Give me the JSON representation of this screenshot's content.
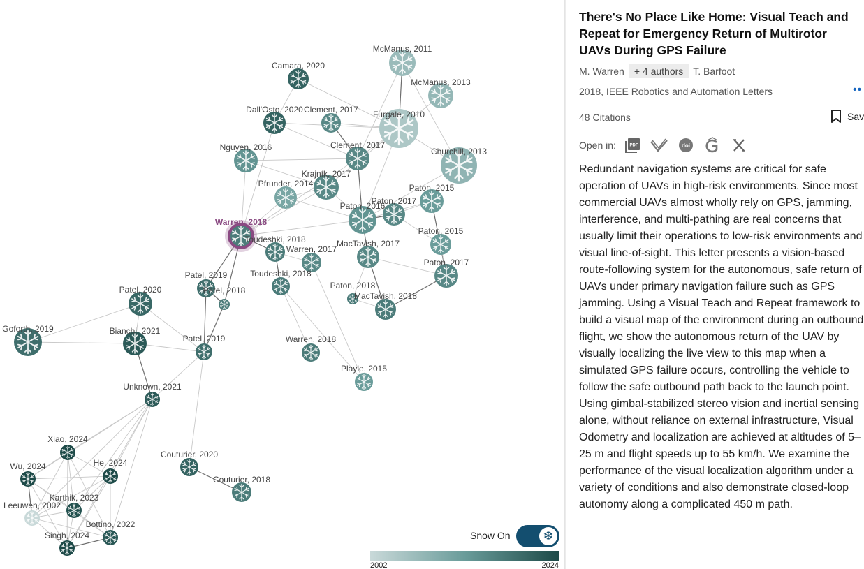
{
  "paper": {
    "title": "There's No Place Like Home: Visual Teach and Repeat for Emergency Return of Multirotor UAVs During GPS Failure",
    "first_author": "M. Warren",
    "more_authors": "+ 4 authors",
    "last_author": "T. Barfoot",
    "venue": "2018, IEEE Robotics and Automation Letters",
    "citations": "48 Citations",
    "save_label": "Save",
    "open_in_label": "Open in:",
    "open_in_icons": [
      "pdf-icon",
      "semantic-scholar-icon",
      "doi-icon",
      "google-scholar-icon",
      "x-icon"
    ],
    "abstract": "Redundant navigation systems are critical for safe operation of UAVs in high-risk environments. Since most commercial UAVs almost wholly rely on GPS, jamming, interference, and multi-pathing are real concerns that usually limit their operations to low-risk environments and visual line-of-sight. This letter presents a vision-based route-following system for the autonomous, safe return of UAVs under primary navigation failure such as GPS jamming. Using a Visual Teach and Repeat framework to build a visual map of the environment during an outbound flight, we show the autonomous return of the UAV by visually localizing the live view to this map when a simulated GPS failure occurs, controlling the vehicle to follow the safe outbound path back to the launch point. Using gimbal-stabilized stereo vision and inertial sensing alone, without reliance on external infrastructure, Visual Odometry and localization are achieved at altitudes of 5–25 m and flight speeds up to 55 km/h. We examine the performance of the visual localization algorithm under a variety of conditions and also demonstrate closed-loop autonomy along a complicated 450 m path."
  },
  "graph": {
    "selected": "Warren, 2018",
    "selected_color": "#8a4a82",
    "nodes": [
      {
        "id": "mcmanus2011",
        "label": "McManus, 2011"
      },
      {
        "id": "camara2020",
        "label": "Camara, 2020"
      },
      {
        "id": "mcmanus2013",
        "label": "McManus, 2013"
      },
      {
        "id": "dallosto2020",
        "label": "Dall'Osto, 2020"
      },
      {
        "id": "clement2017a",
        "label": "Clement, 2017"
      },
      {
        "id": "furgale2010",
        "label": "Furgale, 2010"
      },
      {
        "id": "clement2017b",
        "label": "Clement, 2017"
      },
      {
        "id": "nguyen2016",
        "label": "Nguyen, 2016"
      },
      {
        "id": "churchill2013",
        "label": "Churchill, 2013"
      },
      {
        "id": "krajnik2017",
        "label": "Krajník, 2017"
      },
      {
        "id": "pfrunder2014",
        "label": "Pfrunder, 2014"
      },
      {
        "id": "paton2015a",
        "label": "Paton, 2015"
      },
      {
        "id": "paton2017a",
        "label": "Paton, 2017"
      },
      {
        "id": "paton2016",
        "label": "Paton, 2016"
      },
      {
        "id": "warren2018",
        "label": "Warren, 2018"
      },
      {
        "id": "toudeshki2018a",
        "label": "Toudeshki, 2018"
      },
      {
        "id": "paton2015b",
        "label": "Paton, 2015"
      },
      {
        "id": "mactavish2017",
        "label": "MacTavish, 2017"
      },
      {
        "id": "warren2017",
        "label": "Warren, 2017"
      },
      {
        "id": "paton2017b",
        "label": "Paton, 2017"
      },
      {
        "id": "toudeshki2018b",
        "label": "Toudeshki, 2018"
      },
      {
        "id": "patel2019a",
        "label": "Patel, 2019"
      },
      {
        "id": "paton2018",
        "label": "Paton, 2018"
      },
      {
        "id": "mactavish2018",
        "label": "MacTavish, 2018"
      },
      {
        "id": "patel2018",
        "label": "Patel, 2018"
      },
      {
        "id": "patel2020",
        "label": "Patel, 2020"
      },
      {
        "id": "goforth2019",
        "label": "Goforth, 2019"
      },
      {
        "id": "bianchi2021",
        "label": "Bianchi, 2021"
      },
      {
        "id": "warren2018b",
        "label": "Warren, 2018"
      },
      {
        "id": "patel2019b",
        "label": "Patel, 2019"
      },
      {
        "id": "playle2015",
        "label": "Playle, 2015"
      },
      {
        "id": "unknown2021",
        "label": "Unknown, 2021"
      },
      {
        "id": "xiao2024",
        "label": "Xiao, 2024"
      },
      {
        "id": "couturier2020",
        "label": "Couturier, 2020"
      },
      {
        "id": "he2024",
        "label": "He, 2024"
      },
      {
        "id": "wu2024",
        "label": "Wu, 2024"
      },
      {
        "id": "couturier2018",
        "label": "Couturier, 2018"
      },
      {
        "id": "karthik2023",
        "label": "Karthik, 2023"
      },
      {
        "id": "leeuwen2002",
        "label": "Leeuwen, 2002"
      },
      {
        "id": "bottino2022",
        "label": "Bottino, 2022"
      },
      {
        "id": "singh2024",
        "label": "Singh, 2024"
      }
    ]
  },
  "controls": {
    "snow_label": "Snow On",
    "snow_on": true,
    "legend_min": "2002",
    "legend_max": "2024"
  },
  "colors": {
    "accent": "#134e6f",
    "link": "#1565c0",
    "oldest": "#c9d9d9",
    "newest": "#1d4a48"
  }
}
